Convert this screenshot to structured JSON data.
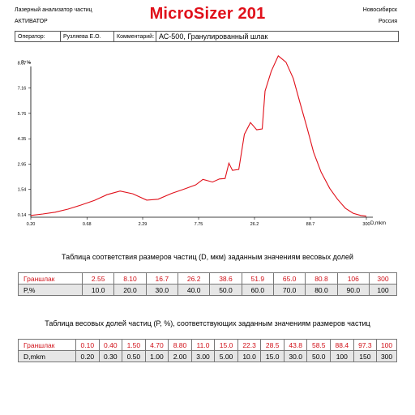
{
  "header": {
    "device": "Лазерный анализатор частиц",
    "mode": "АКТИВАТОР",
    "title": "MicroSizer 201",
    "city": "Новосибирск",
    "country": "Россия"
  },
  "info": {
    "operator_label": "Оператор:",
    "operator_value": "Рузляева Е.О.",
    "comment_label": "Комментарий:",
    "comment_value": "АС-500, Гранулированный шлак"
  },
  "colors": {
    "accent": "#e0101a",
    "line": "#e0101a",
    "cell_gray": "#e6e6e6"
  },
  "chart_data": {
    "type": "line",
    "ylabel": "P, %",
    "xlabel": "D,mkm",
    "y_ticks": [
      "0.14",
      "1.54",
      "2.95",
      "4.35",
      "5.76",
      "7.16",
      "8.57"
    ],
    "x_ticks": [
      "0.20",
      "0.68",
      "2.29",
      "7.75",
      "26.2",
      "88.7",
      "300"
    ],
    "grid": false,
    "x_scale": "log",
    "xlim": [
      0.2,
      300
    ],
    "ylim": [
      0.0,
      8.9
    ],
    "series": [
      {
        "x": [
          0.2,
          0.26,
          0.34,
          0.45,
          0.6,
          0.8,
          1.05,
          1.4,
          1.85,
          2.5,
          3.2,
          4.3,
          5.6,
          7.3,
          8.5,
          10.5,
          12.2,
          13.8,
          15.0,
          16.2,
          18.6,
          21.0,
          24.0,
          27.5,
          31.0,
          33.0,
          37.8,
          44.0,
          52.0,
          61.0,
          71.0,
          82.0,
          95.0,
          112.0,
          135.0,
          160.0,
          190.0,
          225.0,
          265.0,
          300.0
        ],
        "y": [
          0.1,
          0.18,
          0.28,
          0.45,
          0.68,
          0.93,
          1.25,
          1.45,
          1.3,
          0.95,
          1.0,
          1.32,
          1.55,
          1.8,
          2.1,
          1.95,
          2.12,
          2.15,
          3.0,
          2.6,
          2.65,
          4.6,
          5.25,
          4.85,
          4.9,
          7.0,
          8.1,
          8.95,
          8.6,
          7.7,
          6.3,
          5.0,
          3.6,
          2.5,
          1.6,
          1.0,
          0.5,
          0.22,
          0.1,
          0.06
        ]
      }
    ]
  },
  "table1": {
    "caption": "Таблица соответствия размеров частиц (D, мкм) заданным значениям весовых долей",
    "row1_label": "Граншлак",
    "row1": [
      "2.55",
      "8.10",
      "16.7",
      "26.2",
      "38.6",
      "51.9",
      "65.0",
      "80.8",
      "106",
      "300"
    ],
    "row2_label": "P,%",
    "row2": [
      "10.0",
      "20.0",
      "30.0",
      "40.0",
      "50.0",
      "60.0",
      "70.0",
      "80.0",
      "90.0",
      "100"
    ]
  },
  "table2": {
    "caption": "Таблица весовых долей частиц (P, %), соответствующих заданным значениям размеров частиц",
    "row1_label": "Граншлак",
    "row1": [
      "0.10",
      "0.40",
      "1.50",
      "4.70",
      "8.80",
      "11.0",
      "15.0",
      "22.3",
      "28.5",
      "43.8",
      "58.5",
      "88.4",
      "97.3",
      "100"
    ],
    "row2_label": "D,mkm",
    "row2": [
      "0.20",
      "0.30",
      "0.50",
      "1.00",
      "2.00",
      "3.00",
      "5.00",
      "10.0",
      "15.0",
      "30.0",
      "50.0",
      "100",
      "150",
      "300"
    ]
  }
}
